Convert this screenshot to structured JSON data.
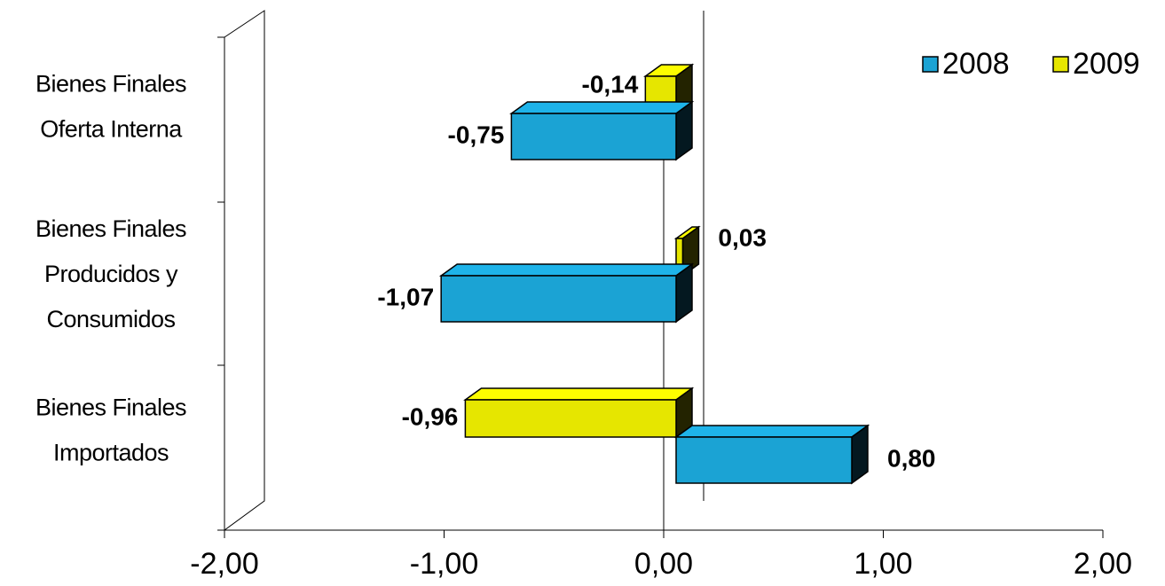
{
  "chart_data": {
    "type": "bar3d-horizontal",
    "categories": [
      "Bienes Finales Oferta Interna",
      "Bienes Finales Producidos y Consumidos",
      "Bienes Finales Importados"
    ],
    "series": [
      {
        "name": "2008",
        "color": "#1ba3d4",
        "values": [
          -0.75,
          -1.07,
          0.8
        ],
        "value_labels": [
          "-0,75",
          "-1,07",
          "0,80"
        ]
      },
      {
        "name": "2009",
        "color": "#e6e600",
        "values": [
          -0.14,
          0.03,
          -0.96
        ],
        "value_labels": [
          "-0,14",
          "0,03",
          "-0,96"
        ]
      }
    ],
    "xlim": [
      -2,
      2
    ],
    "xticks": [
      {
        "value": -2,
        "label": "-2,00"
      },
      {
        "value": -1,
        "label": "-1,00"
      },
      {
        "value": 0,
        "label": "0,00"
      },
      {
        "value": 1,
        "label": "1,00"
      },
      {
        "value": 2,
        "label": "2,00"
      }
    ],
    "legend": "top-right"
  }
}
